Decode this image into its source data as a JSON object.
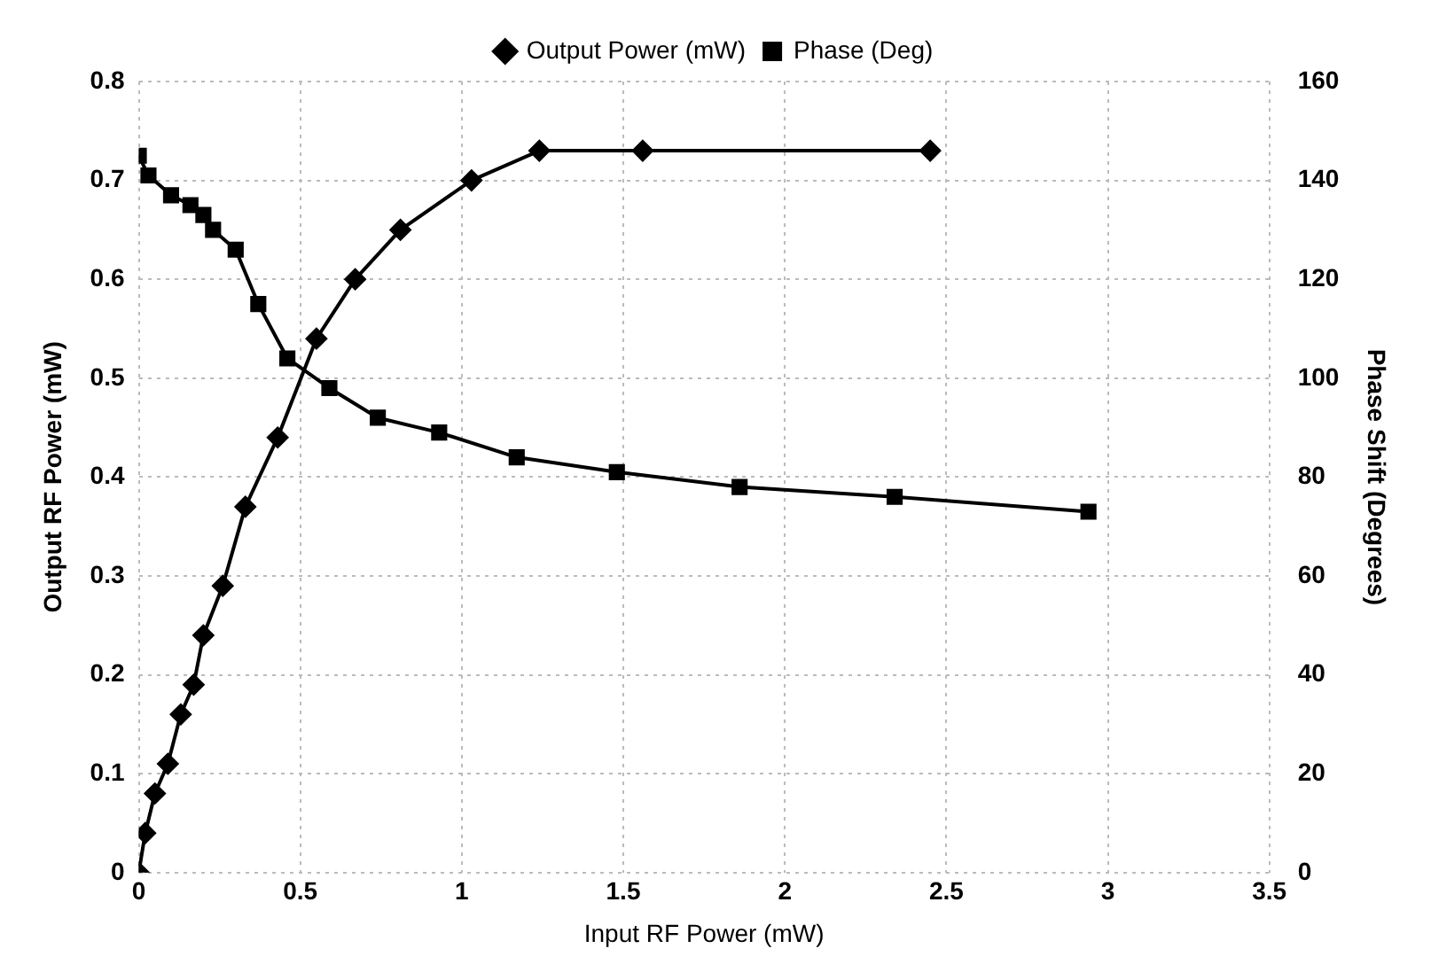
{
  "chart_data": {
    "type": "line",
    "xlabel": "Input RF Power (mW)",
    "ylabel": "Output RF Power (mW)",
    "y2label": "Phase Shift (Degrees)",
    "xlim": [
      0,
      3.5
    ],
    "xticks": [
      0,
      0.5,
      1,
      1.5,
      2,
      2.5,
      3,
      3.5
    ],
    "ylim": [
      0,
      0.8
    ],
    "yticks": [
      0,
      0.1,
      0.2,
      0.3,
      0.4,
      0.5,
      0.6,
      0.7,
      0.8
    ],
    "y2lim": [
      0,
      160
    ],
    "y2ticks": [
      0,
      20,
      40,
      60,
      80,
      100,
      120,
      140,
      160
    ],
    "grid": true,
    "legend": "top",
    "line_style": "solid",
    "series": [
      {
        "name": "Output Power (mW)",
        "color": "#000000",
        "marker": "diamond",
        "x": [
          0,
          0.02,
          0.05,
          0.09,
          0.13,
          0.17,
          0.2,
          0.26,
          0.33,
          0.43,
          0.55,
          0.67,
          0.81,
          1.03,
          1.24,
          1.56,
          2.45
        ],
        "values": [
          0,
          0.04,
          0.08,
          0.11,
          0.16,
          0.19,
          0.24,
          0.29,
          0.37,
          0.44,
          0.54,
          0.6,
          0.65,
          0.7,
          0.73,
          0.73,
          0.73
        ]
      },
      {
        "name": "Phase (Deg)",
        "color": "#000000",
        "marker": "square",
        "axis": "y2",
        "x": [
          0,
          0.03,
          0.1,
          0.16,
          0.2,
          0.23,
          0.3,
          0.37,
          0.46,
          0.59,
          0.74,
          0.93,
          1.17,
          1.48,
          1.86,
          2.34,
          2.94
        ],
        "values": [
          145,
          141,
          137,
          135,
          133,
          130,
          126,
          115,
          104,
          98,
          92,
          89,
          84,
          81,
          78,
          76,
          73
        ]
      }
    ]
  }
}
